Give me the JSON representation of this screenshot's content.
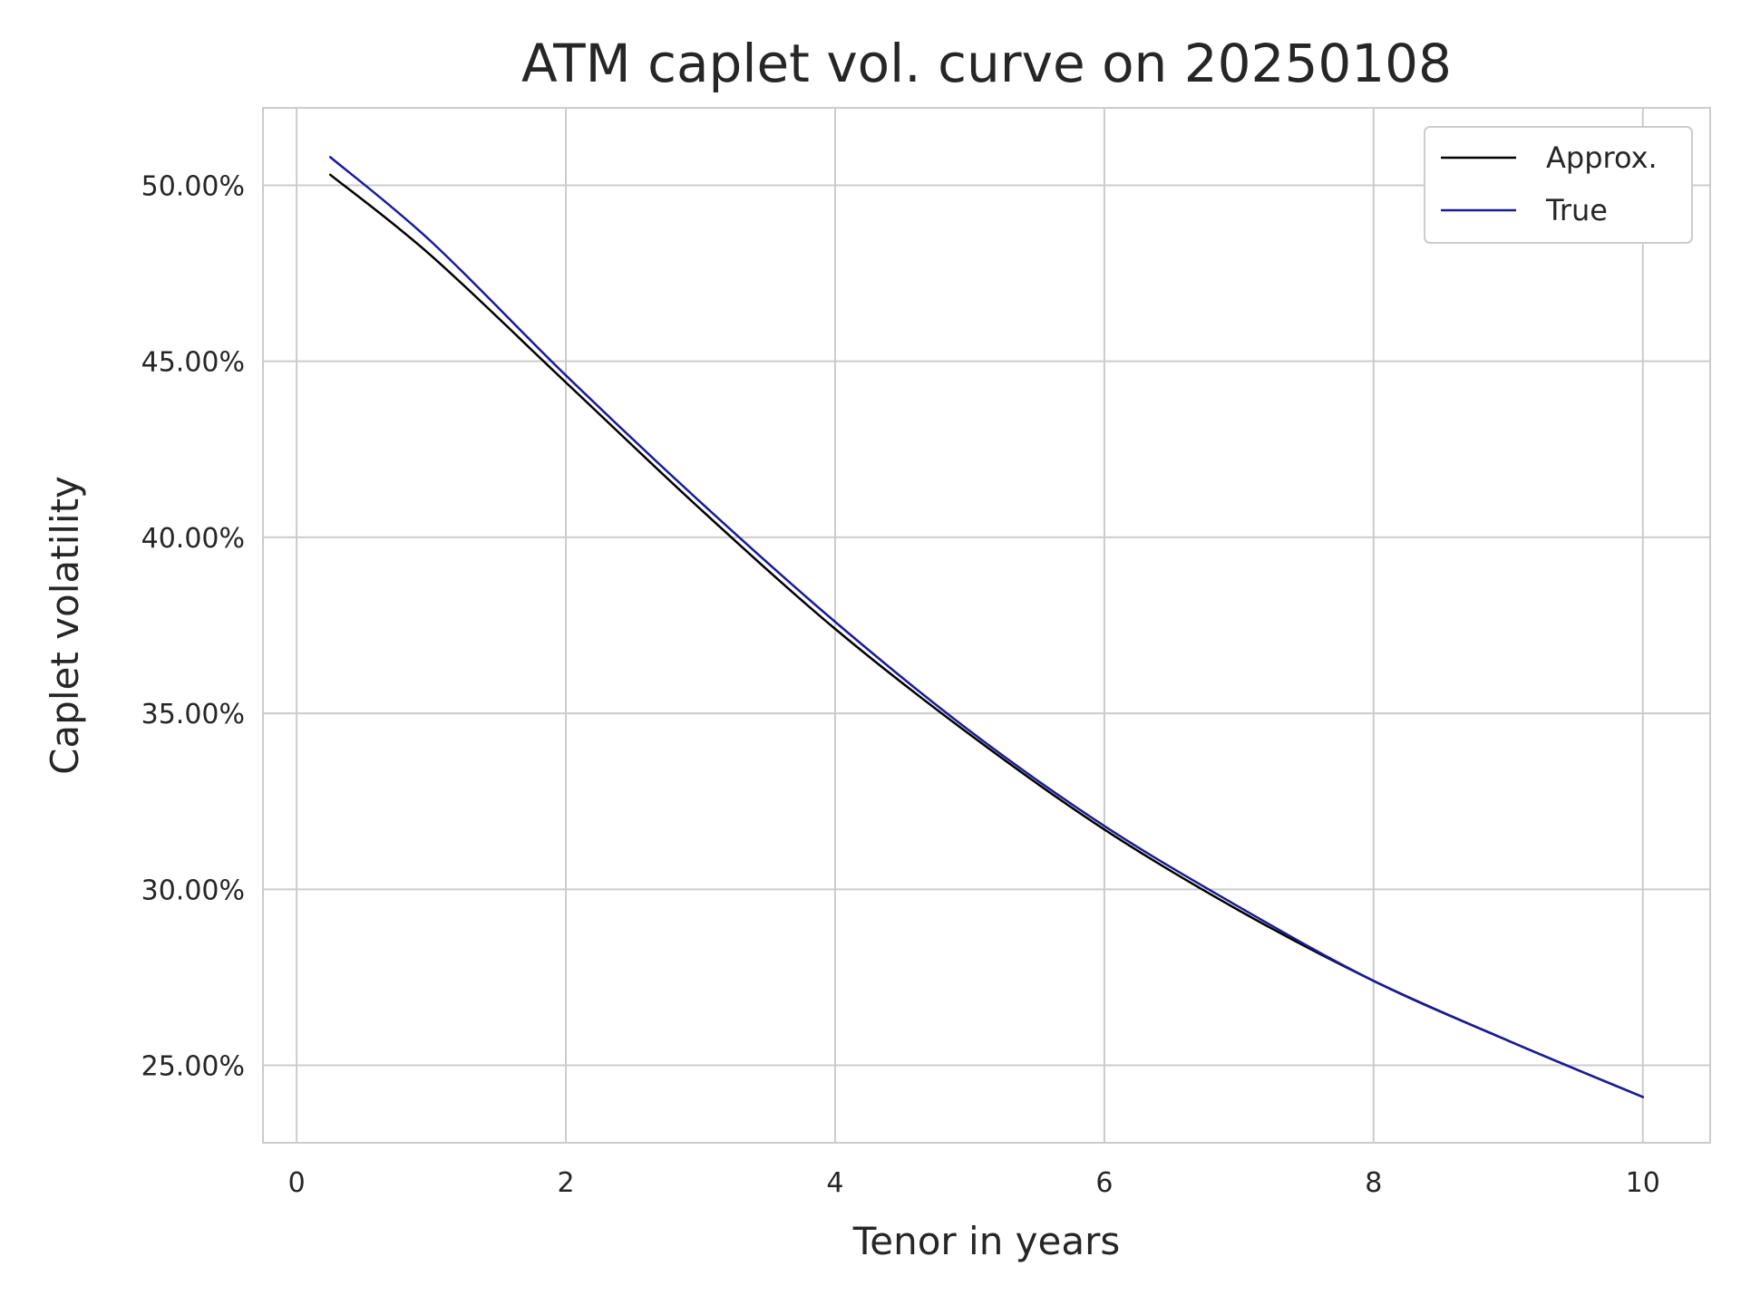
{
  "chart_data": {
    "type": "line",
    "title": "ATM caplet vol. curve on 20250108",
    "xlabel": "Tenor in years",
    "ylabel": "Caplet volatility",
    "xlim": [
      -0.25,
      10.5
    ],
    "ylim": [
      22.8,
      52.2
    ],
    "xticks": [
      0,
      2,
      4,
      6,
      8,
      10
    ],
    "xtick_labels": [
      "0",
      "2",
      "4",
      "6",
      "8",
      "10"
    ],
    "yticks": [
      25,
      30,
      35,
      40,
      45,
      50
    ],
    "ytick_labels": [
      "25.00%",
      "30.00%",
      "35.00%",
      "40.00%",
      "45.00%",
      "50.00%"
    ],
    "grid": true,
    "legend_position": "top-right",
    "x": [
      0.25,
      1,
      2,
      3,
      4,
      5,
      6,
      7,
      8,
      9,
      10
    ],
    "series": [
      {
        "name": "Approx.",
        "color": "#000000",
        "values": [
          50.3,
          48.0,
          44.4,
          40.8,
          37.4,
          34.4,
          31.7,
          29.4,
          27.4,
          25.7,
          24.1
        ]
      },
      {
        "name": "True",
        "color": "#1a1a99",
        "values": [
          50.8,
          48.4,
          44.6,
          41.0,
          37.6,
          34.5,
          31.8,
          29.5,
          27.4,
          25.7,
          24.1
        ]
      }
    ]
  }
}
